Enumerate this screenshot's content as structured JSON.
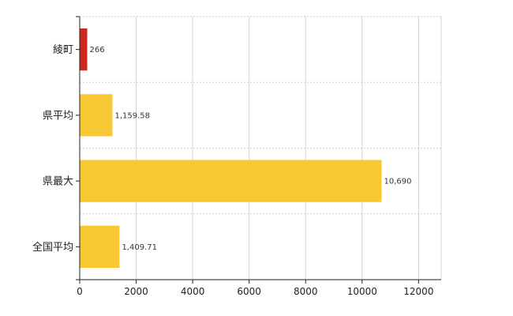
{
  "chart_data": {
    "type": "bar",
    "orientation": "horizontal",
    "categories": [
      "綾町",
      "県平均",
      "県最大",
      "全国平均"
    ],
    "values": [
      266,
      1159.58,
      10690,
      1409.71
    ],
    "data_labels": [
      "266",
      "1,159.58",
      "10,690",
      "1,409.71"
    ],
    "bar_colors": [
      "#cc2a1e",
      "#f8c734",
      "#f8c734",
      "#f8c734"
    ],
    "xlim": [
      0,
      12800
    ],
    "x_ticks": [
      0,
      2000,
      4000,
      6000,
      8000,
      10000,
      12000
    ],
    "x_tick_labels": [
      "0",
      "2000",
      "4000",
      "6000",
      "8000",
      "10000",
      "12000"
    ],
    "title": "",
    "xlabel": "",
    "ylabel": "",
    "grid": true,
    "legend": "none"
  }
}
